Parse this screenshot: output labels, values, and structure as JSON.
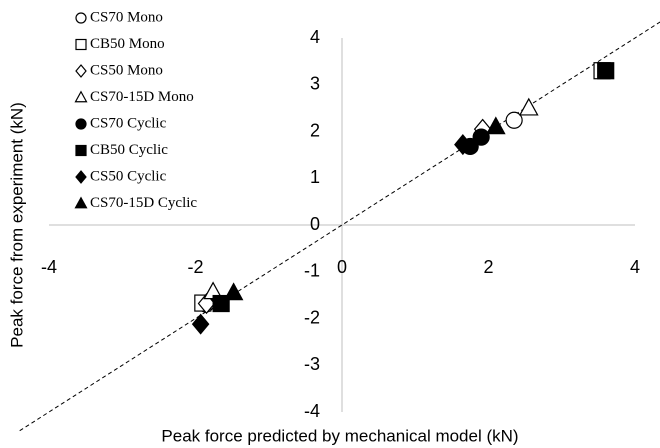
{
  "chart_data": {
    "type": "scatter",
    "x_label": "Peak force predicted by mechanical model (kN)",
    "y_label": "Peak force from experiment (kN)",
    "xlim": [
      -4,
      4
    ],
    "ylim": [
      -4,
      4
    ],
    "xticks": [
      -4,
      -2,
      0,
      2,
      4
    ],
    "yticks": [
      -4,
      -3,
      -2,
      -1,
      0,
      1,
      2,
      3,
      4
    ],
    "series": [
      {
        "name": "CS70 Mono",
        "marker": "circle",
        "filled": false,
        "color": "#000000",
        "x": [
          2.35,
          -1.86
        ],
        "values": [
          2.24,
          -1.69
        ]
      },
      {
        "name": "CB50 Mono",
        "marker": "square",
        "filled": false,
        "color": "#000000",
        "x": [
          3.55,
          -1.9
        ],
        "values": [
          3.3,
          -1.67
        ]
      },
      {
        "name": "CS50 Mono",
        "marker": "diamond",
        "filled": false,
        "color": "#000000",
        "x": [
          1.92,
          -1.85
        ],
        "values": [
          2.05,
          -1.68
        ]
      },
      {
        "name": "CS70-15D Mono",
        "marker": "triangle",
        "filled": false,
        "color": "#000000",
        "x": [
          2.55,
          -1.76
        ],
        "values": [
          2.5,
          -1.43
        ]
      },
      {
        "name": "CS70 Cyclic",
        "marker": "circle",
        "filled": true,
        "color": "#000000",
        "x": [
          1.9,
          1.75
        ],
        "values": [
          1.88,
          1.68
        ]
      },
      {
        "name": "CB50 Cyclic",
        "marker": "square",
        "filled": true,
        "color": "#000000",
        "x": [
          3.6,
          -1.65
        ],
        "values": [
          3.3,
          -1.68
        ]
      },
      {
        "name": "CS50 Cyclic",
        "marker": "diamond",
        "filled": true,
        "color": "#000000",
        "x": [
          1.65,
          -1.93
        ],
        "values": [
          1.72,
          -2.12
        ]
      },
      {
        "name": "CS70-15D Cyclic",
        "marker": "triangle",
        "filled": true,
        "color": "#000000",
        "x": [
          2.1,
          -1.48
        ],
        "values": [
          2.1,
          -1.45
        ]
      }
    ]
  }
}
